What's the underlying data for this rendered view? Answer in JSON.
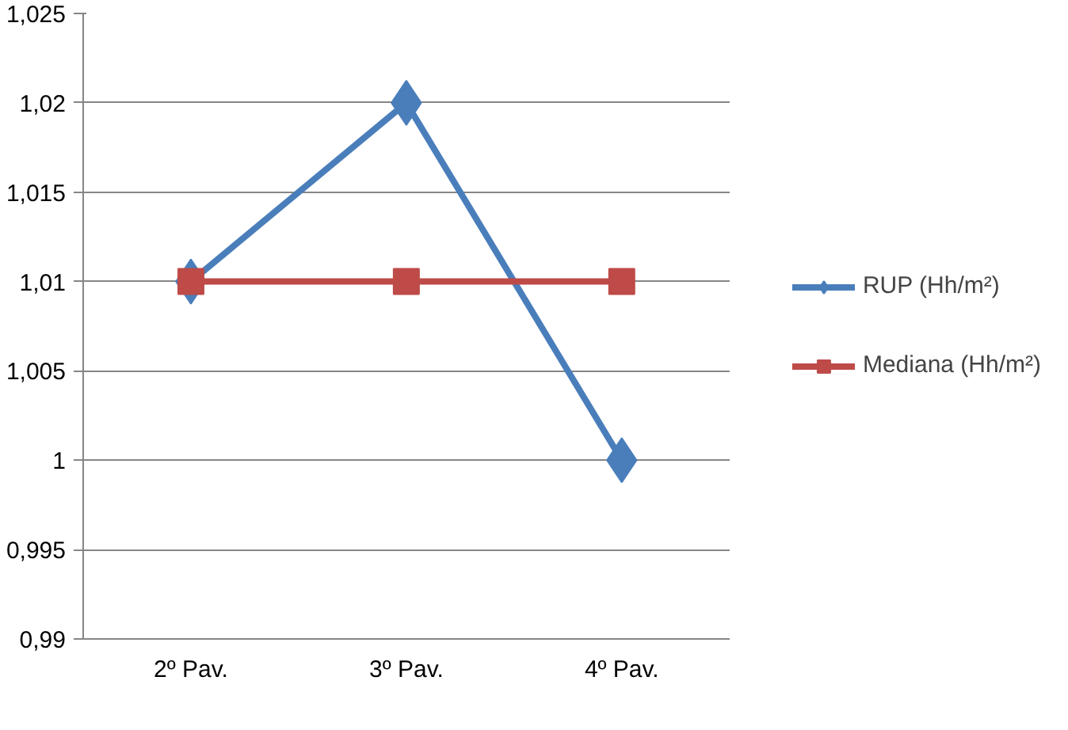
{
  "chart_data": {
    "type": "line",
    "categories": [
      "2º Pav.",
      "3º Pav.",
      "4º Pav."
    ],
    "series": [
      {
        "name": "RUP (Hh/m²)",
        "color": "#4a7ebb",
        "values": [
          1.01,
          1.02,
          1.0
        ],
        "marker": "diamond"
      },
      {
        "name": "Mediana (Hh/m²)",
        "color": "#be4b48",
        "values": [
          1.01,
          1.01,
          1.01
        ],
        "marker": "square"
      }
    ],
    "ylim": [
      0.99,
      1.025
    ],
    "yticks": [
      {
        "value": 0.99,
        "label": "0,99"
      },
      {
        "value": 0.995,
        "label": "0,995"
      },
      {
        "value": 1.0,
        "label": "1"
      },
      {
        "value": 1.005,
        "label": "1,005"
      },
      {
        "value": 1.01,
        "label": "1,01"
      },
      {
        "value": 1.015,
        "label": "1,015"
      },
      {
        "value": 1.02,
        "label": "1,02"
      },
      {
        "value": 1.025,
        "label": "1,025"
      }
    ],
    "grid": "y",
    "legend": "right",
    "line_style": "solid"
  }
}
